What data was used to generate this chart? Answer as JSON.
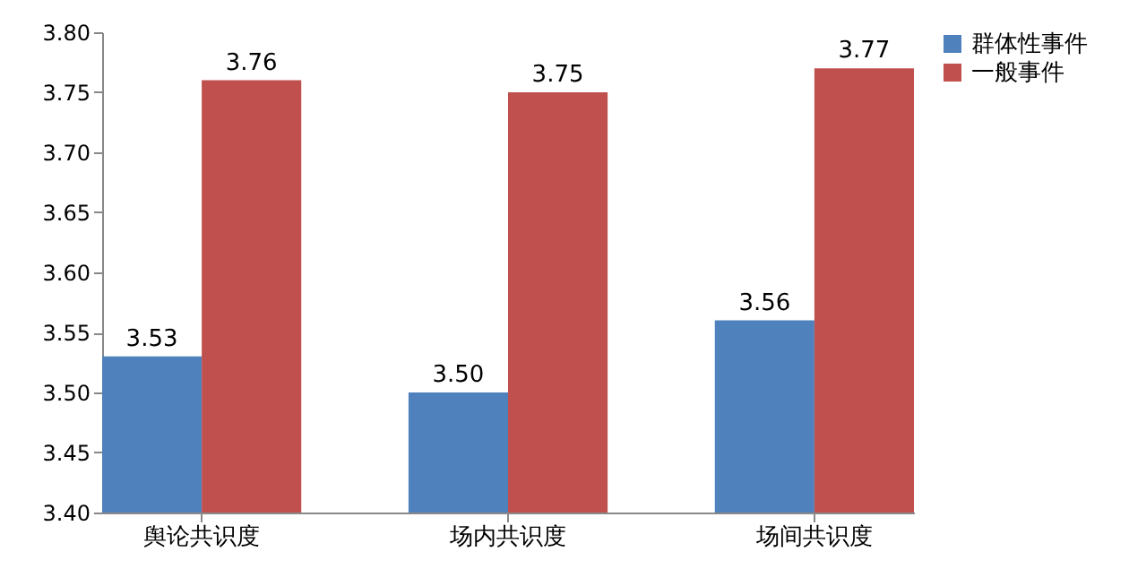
{
  "chart_data": {
    "type": "bar",
    "categories": [
      "舆论共识度",
      "场内共识度",
      "场间共识度"
    ],
    "series": [
      {
        "name": "群体性事件",
        "color": "#4f81bd",
        "values": [
          3.53,
          3.5,
          3.56
        ],
        "value_labels": [
          "3.53",
          "3.50",
          "3.56"
        ]
      },
      {
        "name": "一般事件",
        "color": "#c0504d",
        "values": [
          3.76,
          3.75,
          3.77
        ],
        "value_labels": [
          "3.76",
          "3.75",
          "3.77"
        ]
      }
    ],
    "ylim": [
      3.4,
      3.8
    ],
    "yticks": [
      {
        "value": 3.4,
        "label": "3.40"
      },
      {
        "value": 3.45,
        "label": "3.45"
      },
      {
        "value": 3.5,
        "label": "3.50"
      },
      {
        "value": 3.55,
        "label": "3.55"
      },
      {
        "value": 3.6,
        "label": "3.60"
      },
      {
        "value": 3.65,
        "label": "3.65"
      },
      {
        "value": 3.7,
        "label": "3.70"
      },
      {
        "value": 3.75,
        "label": "3.75"
      },
      {
        "value": 3.8,
        "label": "3.80"
      }
    ],
    "grid": false,
    "legend": "right"
  }
}
